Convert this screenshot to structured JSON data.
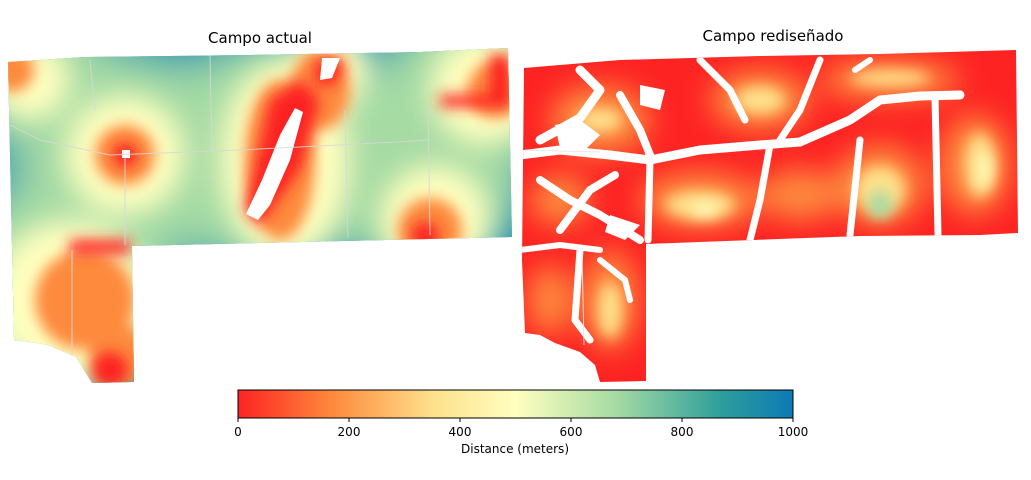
{
  "panels": [
    {
      "title": "Campo actual"
    },
    {
      "title": "Campo rediseñado"
    }
  ],
  "colorbar": {
    "label": "Distance (meters)",
    "min": 0,
    "max": 1000,
    "ticks": [
      "0",
      "200",
      "400",
      "600",
      "800",
      "1000"
    ],
    "colors": [
      "#fd2323",
      "#fd8a3c",
      "#fee08b",
      "#ffffbf",
      "#a6dba4",
      "#2e9e9b",
      "#0c7ab5"
    ]
  }
}
